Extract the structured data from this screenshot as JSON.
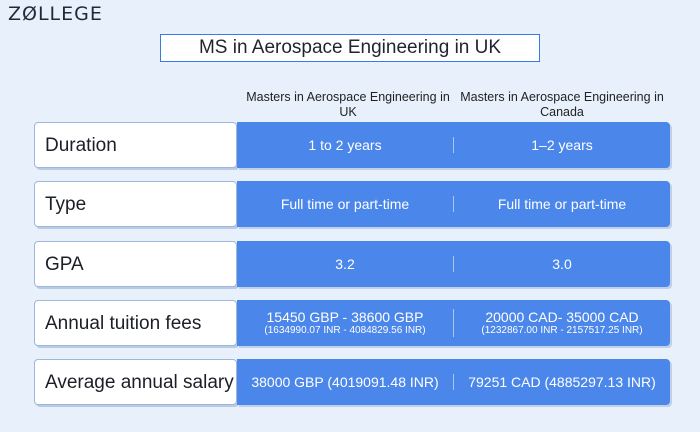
{
  "logo": {
    "text": "ZØLLEGE"
  },
  "title": "MS in Aerospace Engineering in UK",
  "columns": {
    "uk": "Masters in Aerospace Engineering in UK",
    "canada": "Masters in Aerospace Engineering in Canada"
  },
  "rows": [
    {
      "label": "Duration",
      "uk": "1 to 2 years",
      "canada": "1–2 years"
    },
    {
      "label": "Type",
      "uk": "Full time or part-time",
      "canada": "Full time or part-time"
    },
    {
      "label": "GPA",
      "uk": "3.2",
      "canada": "3.0"
    },
    {
      "label": "Annual tuition fees",
      "uk": "15450 GBP - 38600 GBP",
      "uk_sub": "(1634990.07 INR - 4084829.56 INR)",
      "canada": "20000 CAD- 35000 CAD",
      "canada_sub": "(1232867.00 INR - 2157517.25 INR)"
    },
    {
      "label": "Average annual salary",
      "uk": "38000 GBP (4019091.48 INR)",
      "canada": "79251 CAD (4885297.13 INR)"
    }
  ],
  "colors": {
    "bar": "#4b86ea",
    "background": "#e8f1fb",
    "accent": "#3a7be0"
  }
}
